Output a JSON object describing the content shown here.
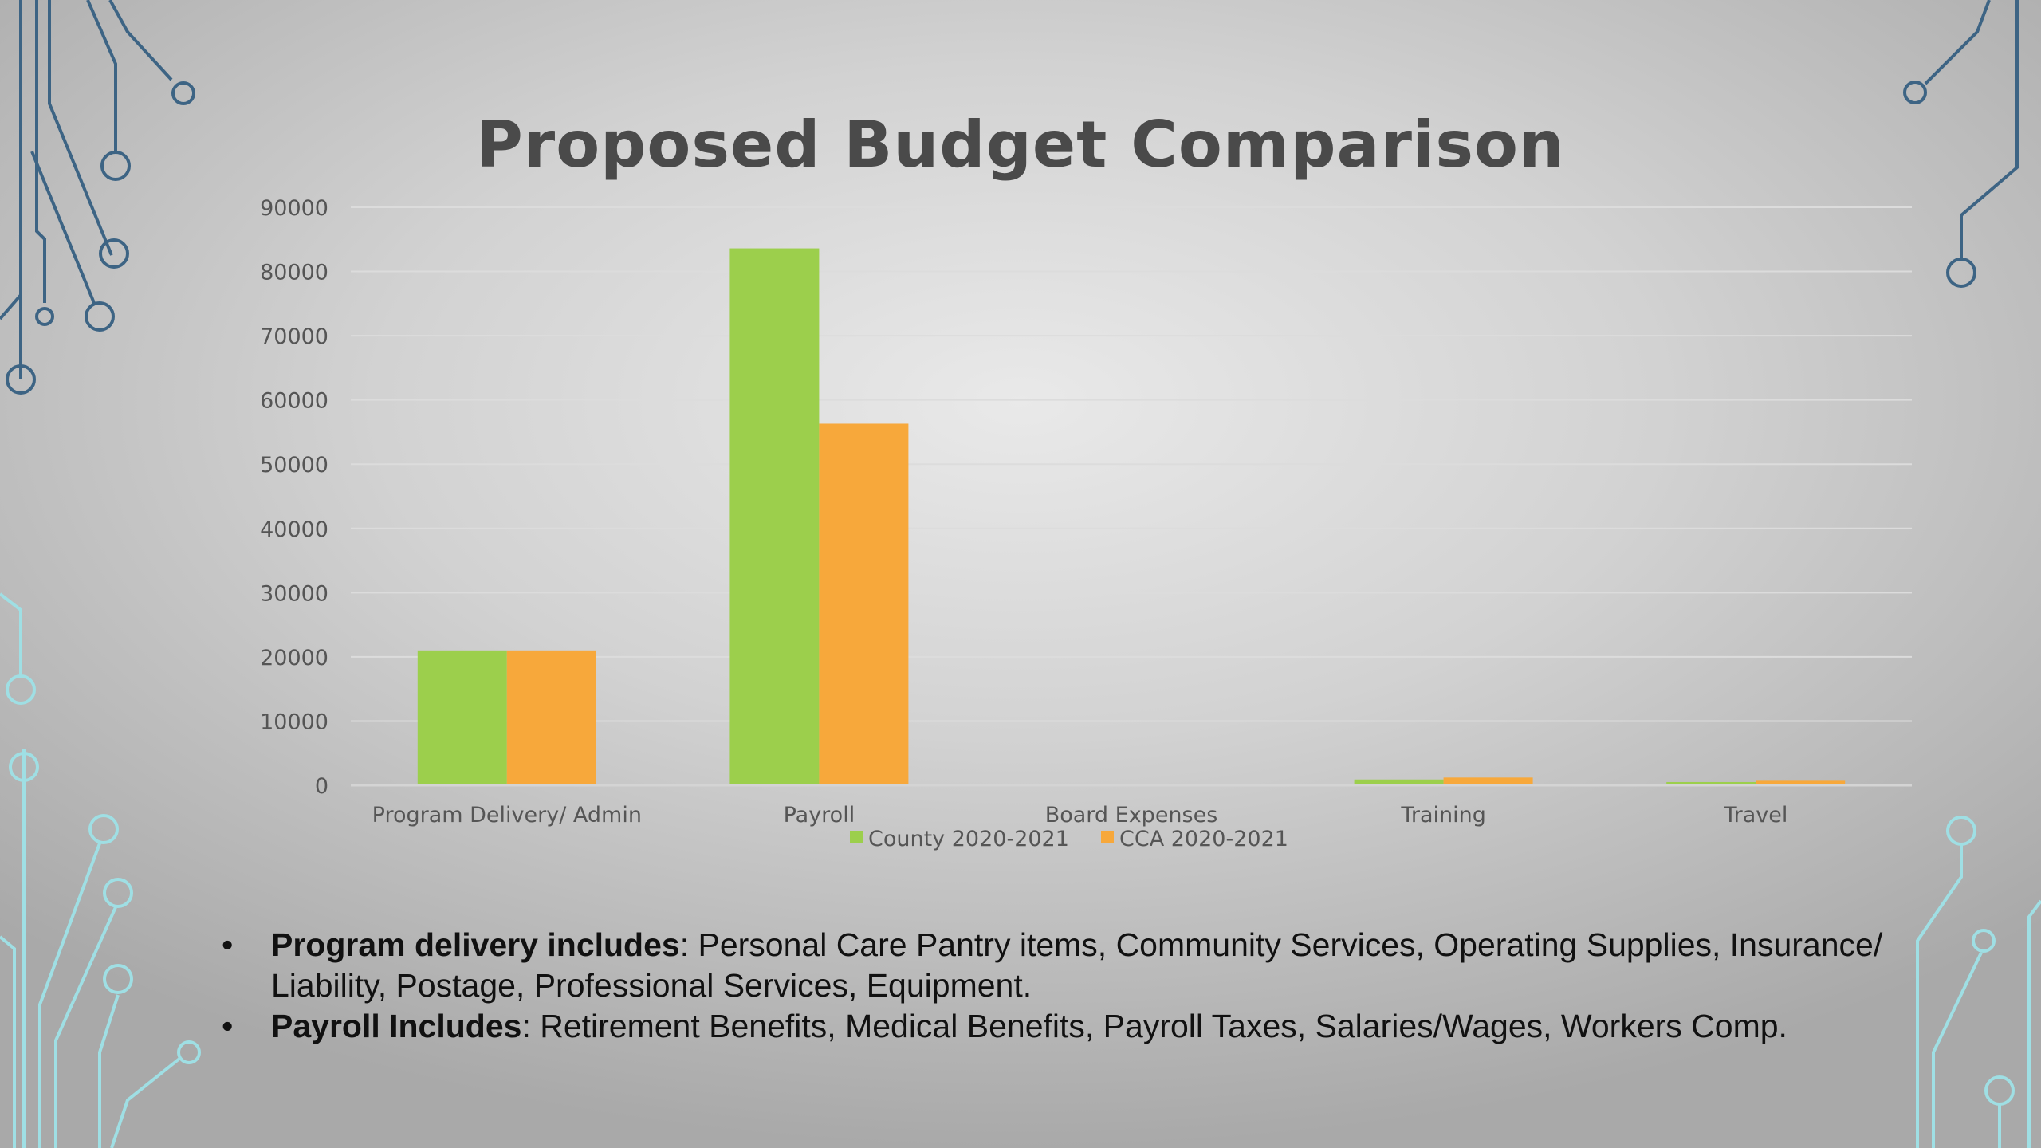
{
  "chart_data": {
    "type": "bar",
    "title": "Proposed Budget Comparison",
    "categories": [
      "Program Delivery/ Admin",
      "Payroll",
      "Board Expenses",
      "Training",
      "Travel"
    ],
    "series": [
      {
        "name": "County 2020-2021",
        "values": [
          21000,
          83600,
          0,
          900,
          500
        ],
        "color": "#9ccf4c"
      },
      {
        "name": "CCA 2020-2021",
        "values": [
          21000,
          56300,
          0,
          1200,
          700
        ],
        "color": "#f7a83b"
      }
    ],
    "ylim": [
      0,
      90000
    ],
    "yticks": [
      "0",
      "10000",
      "20000",
      "30000",
      "40000",
      "50000",
      "60000",
      "70000",
      "80000",
      "90000"
    ],
    "grid": true,
    "legend": "bottom",
    "xlabel": "",
    "ylabel": ""
  },
  "notes": [
    {
      "bold": "Program delivery includes",
      "text": ": Personal Care Pantry items, Community Services, Operating Supplies, Insurance/ Liability, Postage, Professional Services, Equipment."
    },
    {
      "bold": "Payroll Includes",
      "text": ": Retirement Benefits, Medical Benefits, Payroll Taxes, Salaries/Wages, Workers Comp."
    }
  ],
  "bullet_glyph": "•",
  "decor": {
    "dark_circuit_color": "#3d6484",
    "light_circuit_color": "#9fdfe4",
    "icons": [
      "circuit-corner-top-left",
      "circuit-corner-top-right",
      "circuit-corner-bottom-left",
      "circuit-corner-bottom-right"
    ]
  }
}
